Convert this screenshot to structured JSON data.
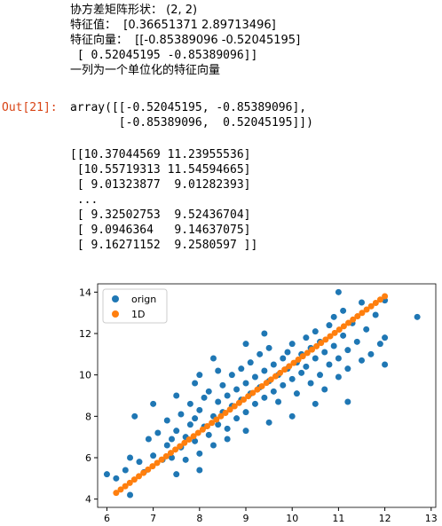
{
  "cell": {
    "stdout_lines": [
      "协方差矩阵形状： (2, 2)",
      "特征值：  [0.36651371 2.89713496]",
      "特征向量：  [[-0.85389096 -0.52045195]",
      " [ 0.52045195 -0.85389096]]",
      "一列为一个单位化的特征向量"
    ],
    "prompt": "Out[21]:",
    "result_lines": [
      "array([[-0.52045195, -0.85389096],",
      "       [-0.85389096,  0.52045195]])"
    ],
    "printed_lines": [
      "[[10.37044569 11.23955536]",
      " [10.55719313 11.54594665]",
      " [ 9.01323877  9.01282393]",
      " ...",
      " [ 9.32502753  9.52436704]",
      " [ 9.0946364   9.14637075]",
      " [ 9.16271152  9.2580597 ]]"
    ]
  },
  "chart_data": {
    "type": "scatter",
    "title": "",
    "xlabel": "",
    "ylabel": "",
    "xlim": [
      5.8,
      13.1
    ],
    "ylim": [
      3.6,
      14.4
    ],
    "xticks": [
      6,
      7,
      8,
      9,
      10,
      11,
      12,
      13
    ],
    "yticks": [
      4,
      6,
      8,
      10,
      12,
      14
    ],
    "grid": false,
    "legend": "top-left",
    "series": [
      {
        "name": "orign",
        "color": "#1f77b4",
        "points": [
          [
            6.0,
            5.2
          ],
          [
            6.2,
            5.0
          ],
          [
            6.4,
            5.4
          ],
          [
            6.5,
            4.2
          ],
          [
            6.5,
            6.0
          ],
          [
            6.7,
            5.8
          ],
          [
            6.8,
            5.3
          ],
          [
            6.9,
            6.9
          ],
          [
            7.0,
            6.1
          ],
          [
            7.1,
            7.2
          ],
          [
            7.2,
            5.9
          ],
          [
            7.3,
            6.6
          ],
          [
            7.3,
            7.8
          ],
          [
            7.4,
            6.9
          ],
          [
            7.5,
            5.2
          ],
          [
            7.5,
            7.3
          ],
          [
            7.6,
            6.5
          ],
          [
            7.6,
            8.1
          ],
          [
            7.7,
            7.0
          ],
          [
            7.7,
            5.9
          ],
          [
            7.8,
            7.6
          ],
          [
            7.8,
            8.6
          ],
          [
            7.9,
            6.8
          ],
          [
            7.9,
            7.9
          ],
          [
            8.0,
            8.3
          ],
          [
            8.0,
            6.2
          ],
          [
            8.1,
            7.5
          ],
          [
            8.1,
            8.9
          ],
          [
            8.2,
            7.1
          ],
          [
            8.2,
            9.2
          ],
          [
            8.3,
            8.0
          ],
          [
            8.3,
            6.6
          ],
          [
            8.4,
            8.7
          ],
          [
            8.4,
            7.6
          ],
          [
            8.5,
            9.5
          ],
          [
            8.5,
            8.2
          ],
          [
            8.6,
            7.4
          ],
          [
            8.6,
            9.0
          ],
          [
            8.7,
            8.5
          ],
          [
            8.7,
            10.0
          ],
          [
            8.8,
            7.9
          ],
          [
            8.8,
            9.3
          ],
          [
            8.9,
            8.8
          ],
          [
            8.9,
            10.3
          ],
          [
            9.0,
            8.2
          ],
          [
            9.0,
            9.6
          ],
          [
            9.1,
            9.1
          ],
          [
            9.1,
            10.6
          ],
          [
            9.2,
            8.6
          ],
          [
            9.2,
            9.9
          ],
          [
            9.3,
            9.4
          ],
          [
            9.3,
            11.0
          ],
          [
            9.4,
            8.9
          ],
          [
            9.4,
            10.2
          ],
          [
            9.5,
            9.7
          ],
          [
            9.5,
            11.3
          ],
          [
            9.6,
            9.2
          ],
          [
            9.6,
            10.5
          ],
          [
            9.7,
            10.0
          ],
          [
            9.7,
            8.7
          ],
          [
            9.8,
            10.8
          ],
          [
            9.8,
            9.5
          ],
          [
            9.9,
            11.1
          ],
          [
            9.9,
            10.3
          ],
          [
            10.0,
            9.8
          ],
          [
            10.0,
            11.5
          ],
          [
            10.1,
            10.6
          ],
          [
            10.1,
            9.1
          ],
          [
            10.2,
            11.0
          ],
          [
            10.2,
            10.1
          ],
          [
            10.3,
            11.8
          ],
          [
            10.3,
            10.4
          ],
          [
            10.4,
            9.6
          ],
          [
            10.4,
            11.3
          ],
          [
            10.5,
            10.8
          ],
          [
            10.5,
            12.1
          ],
          [
            10.6,
            10.0
          ],
          [
            10.6,
            11.6
          ],
          [
            10.7,
            11.1
          ],
          [
            10.7,
            9.3
          ],
          [
            10.8,
            12.4
          ],
          [
            10.8,
            10.5
          ],
          [
            10.9,
            11.4
          ],
          [
            10.9,
            12.8
          ],
          [
            11.0,
            10.8
          ],
          [
            11.0,
            9.9
          ],
          [
            11.1,
            11.9
          ],
          [
            11.1,
            13.1
          ],
          [
            11.2,
            11.2
          ],
          [
            11.2,
            10.3
          ],
          [
            11.3,
            12.5
          ],
          [
            11.4,
            11.6
          ],
          [
            11.5,
            10.7
          ],
          [
            11.5,
            13.5
          ],
          [
            11.6,
            12.2
          ],
          [
            11.7,
            11.0
          ],
          [
            11.8,
            12.9
          ],
          [
            11.9,
            11.5
          ],
          [
            12.0,
            11.8
          ],
          [
            12.0,
            10.5
          ],
          [
            12.7,
            12.8
          ],
          [
            11.0,
            14.0
          ],
          [
            12.0,
            13.6
          ],
          [
            8.0,
            10.0
          ],
          [
            8.3,
            10.8
          ],
          [
            9.0,
            11.5
          ],
          [
            7.5,
            9.0
          ],
          [
            7.0,
            8.6
          ],
          [
            6.6,
            8.0
          ],
          [
            10.5,
            8.6
          ],
          [
            11.2,
            8.7
          ],
          [
            10.0,
            8.0
          ],
          [
            9.5,
            7.7
          ],
          [
            8.6,
            6.9
          ],
          [
            8.0,
            5.4
          ],
          [
            9.0,
            7.3
          ],
          [
            7.4,
            6.0
          ],
          [
            7.9,
            9.6
          ],
          [
            8.4,
            10.2
          ],
          [
            9.4,
            12.0
          ]
        ]
      },
      {
        "name": "1D",
        "color": "#ff7f0e",
        "line_from": [
          6.2,
          4.3
        ],
        "line_to": [
          12.0,
          13.8
        ],
        "count": 60
      }
    ]
  }
}
